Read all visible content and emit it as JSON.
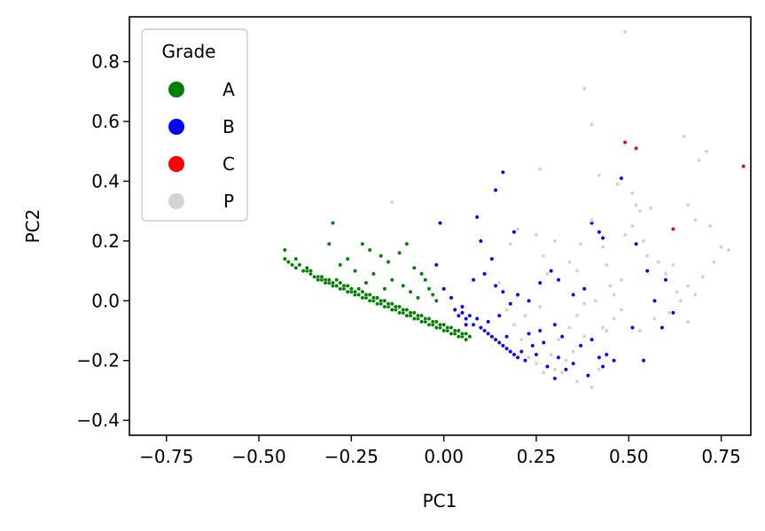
{
  "chart_data": {
    "type": "scatter",
    "title": "",
    "xlabel": "PC1",
    "ylabel": "PC2",
    "xlim": [
      -0.85,
      0.83
    ],
    "ylim": [
      -0.45,
      0.95
    ],
    "xticks": [
      -0.75,
      -0.5,
      -0.25,
      0.0,
      0.25,
      0.5,
      0.75
    ],
    "xtick_labels": [
      "−0.75",
      "−0.50",
      "−0.25",
      "0.00",
      "0.25",
      "0.50",
      "0.75"
    ],
    "yticks": [
      -0.4,
      -0.2,
      0.0,
      0.2,
      0.4,
      0.6,
      0.8
    ],
    "ytick_labels": [
      "−0.4",
      "−0.2",
      "0.0",
      "0.2",
      "0.4",
      "0.6",
      "0.8"
    ],
    "grid": false,
    "legend": {
      "title": "Grade",
      "placement": "top-left"
    },
    "series": [
      {
        "name": "A",
        "color": "#008000",
        "points": [
          [
            -0.43,
            0.14
          ],
          [
            -0.43,
            0.17
          ],
          [
            -0.42,
            0.13
          ],
          [
            -0.41,
            0.12
          ],
          [
            -0.4,
            0.14
          ],
          [
            -0.4,
            0.11
          ],
          [
            -0.39,
            0.12
          ],
          [
            -0.38,
            0.1
          ],
          [
            -0.37,
            0.1
          ],
          [
            -0.37,
            0.11
          ],
          [
            -0.36,
            0.09
          ],
          [
            -0.36,
            0.1
          ],
          [
            -0.35,
            0.08
          ],
          [
            -0.34,
            0.08
          ],
          [
            -0.34,
            0.07
          ],
          [
            -0.33,
            0.07
          ],
          [
            -0.33,
            0.08
          ],
          [
            -0.32,
            0.07
          ],
          [
            -0.32,
            0.06
          ],
          [
            -0.31,
            0.06
          ],
          [
            -0.31,
            0.07
          ],
          [
            -0.3,
            0.05
          ],
          [
            -0.3,
            0.06
          ],
          [
            -0.29,
            0.05
          ],
          [
            -0.29,
            0.07
          ],
          [
            -0.28,
            0.04
          ],
          [
            -0.28,
            0.06
          ],
          [
            -0.27,
            0.04
          ],
          [
            -0.27,
            0.05
          ],
          [
            -0.26,
            0.03
          ],
          [
            -0.26,
            0.05
          ],
          [
            -0.25,
            0.03
          ],
          [
            -0.25,
            0.04
          ],
          [
            -0.24,
            0.02
          ],
          [
            -0.24,
            0.03
          ],
          [
            -0.23,
            0.02
          ],
          [
            -0.23,
            0.04
          ],
          [
            -0.22,
            0.01
          ],
          [
            -0.22,
            0.03
          ],
          [
            -0.21,
            0.01
          ],
          [
            -0.21,
            0.02
          ],
          [
            -0.2,
            0.0
          ],
          [
            -0.2,
            0.02
          ],
          [
            -0.19,
            0.0
          ],
          [
            -0.19,
            0.01
          ],
          [
            -0.18,
            -0.01
          ],
          [
            -0.18,
            0.01
          ],
          [
            -0.17,
            -0.01
          ],
          [
            -0.17,
            0.0
          ],
          [
            -0.16,
            -0.02
          ],
          [
            -0.16,
            0.0
          ],
          [
            -0.15,
            -0.02
          ],
          [
            -0.15,
            -0.01
          ],
          [
            -0.14,
            -0.03
          ],
          [
            -0.14,
            -0.01
          ],
          [
            -0.13,
            -0.03
          ],
          [
            -0.13,
            -0.02
          ],
          [
            -0.12,
            -0.04
          ],
          [
            -0.12,
            -0.02
          ],
          [
            -0.11,
            -0.04
          ],
          [
            -0.11,
            -0.03
          ],
          [
            -0.1,
            -0.05
          ],
          [
            -0.1,
            -0.03
          ],
          [
            -0.09,
            -0.05
          ],
          [
            -0.09,
            -0.04
          ],
          [
            -0.08,
            -0.06
          ],
          [
            -0.08,
            -0.04
          ],
          [
            -0.07,
            -0.06
          ],
          [
            -0.07,
            -0.05
          ],
          [
            -0.06,
            -0.07
          ],
          [
            -0.06,
            -0.05
          ],
          [
            -0.05,
            -0.07
          ],
          [
            -0.05,
            -0.06
          ],
          [
            -0.04,
            -0.08
          ],
          [
            -0.04,
            -0.06
          ],
          [
            -0.03,
            -0.08
          ],
          [
            -0.03,
            -0.07
          ],
          [
            -0.02,
            -0.09
          ],
          [
            -0.02,
            -0.07
          ],
          [
            -0.01,
            -0.09
          ],
          [
            -0.01,
            -0.08
          ],
          [
            0.0,
            -0.1
          ],
          [
            0.0,
            -0.08
          ],
          [
            0.01,
            -0.1
          ],
          [
            0.01,
            -0.09
          ],
          [
            0.02,
            -0.11
          ],
          [
            0.02,
            -0.09
          ],
          [
            0.03,
            -0.11
          ],
          [
            0.03,
            -0.1
          ],
          [
            0.04,
            -0.12
          ],
          [
            0.04,
            -0.1
          ],
          [
            0.05,
            -0.12
          ],
          [
            0.05,
            -0.11
          ],
          [
            0.06,
            -0.13
          ],
          [
            0.06,
            -0.11
          ],
          [
            0.07,
            -0.12
          ],
          [
            -0.3,
            0.26
          ],
          [
            -0.31,
            0.19
          ],
          [
            -0.26,
            0.14
          ],
          [
            -0.22,
            0.19
          ],
          [
            -0.2,
            0.17
          ],
          [
            -0.17,
            0.15
          ],
          [
            -0.15,
            0.13
          ],
          [
            -0.12,
            0.16
          ],
          [
            -0.1,
            0.19
          ],
          [
            -0.08,
            0.11
          ],
          [
            -0.06,
            0.09
          ],
          [
            -0.05,
            0.07
          ],
          [
            -0.04,
            0.04
          ],
          [
            -0.03,
            0.02
          ],
          [
            -0.02,
            0.0
          ],
          [
            -0.24,
            0.1
          ],
          [
            -0.28,
            0.12
          ],
          [
            -0.19,
            0.09
          ],
          [
            -0.14,
            0.07
          ],
          [
            -0.11,
            0.05
          ],
          [
            -0.09,
            0.03
          ],
          [
            -0.07,
            0.01
          ],
          [
            -0.16,
            0.04
          ],
          [
            -0.21,
            0.06
          ]
        ]
      },
      {
        "name": "B",
        "color": "#0000ff",
        "points": [
          [
            0.03,
            -0.03
          ],
          [
            0.04,
            -0.05
          ],
          [
            0.05,
            -0.04
          ],
          [
            0.06,
            -0.06
          ],
          [
            0.07,
            -0.05
          ],
          [
            0.08,
            -0.08
          ],
          [
            0.09,
            -0.06
          ],
          [
            0.1,
            -0.09
          ],
          [
            0.11,
            -0.1
          ],
          [
            0.12,
            -0.11
          ],
          [
            0.13,
            -0.12
          ],
          [
            0.14,
            -0.13
          ],
          [
            0.15,
            -0.14
          ],
          [
            0.16,
            -0.15
          ],
          [
            0.17,
            -0.16
          ],
          [
            0.18,
            -0.17
          ],
          [
            0.19,
            -0.18
          ],
          [
            0.2,
            -0.19
          ],
          [
            0.21,
            -0.17
          ],
          [
            0.22,
            -0.2
          ],
          [
            0.24,
            -0.15
          ],
          [
            0.25,
            -0.18
          ],
          [
            0.27,
            -0.14
          ],
          [
            0.28,
            -0.22
          ],
          [
            0.3,
            -0.26
          ],
          [
            0.31,
            -0.19
          ],
          [
            0.33,
            -0.23
          ],
          [
            0.35,
            -0.21
          ],
          [
            0.37,
            -0.15
          ],
          [
            0.39,
            -0.25
          ],
          [
            0.4,
            -0.13
          ],
          [
            0.42,
            -0.19
          ],
          [
            0.43,
            -0.22
          ],
          [
            0.44,
            -0.18
          ],
          [
            0.46,
            -0.2
          ],
          [
            0.08,
            0.07
          ],
          [
            0.11,
            0.09
          ],
          [
            0.14,
            0.05
          ],
          [
            0.16,
            0.03
          ],
          [
            0.18,
            -0.01
          ],
          [
            0.2,
            0.02
          ],
          [
            0.23,
            0.0
          ],
          [
            0.26,
            0.06
          ],
          [
            0.29,
            0.1
          ],
          [
            0.31,
            0.07
          ],
          [
            0.35,
            0.02
          ],
          [
            0.38,
            0.04
          ],
          [
            -0.01,
            0.26
          ],
          [
            0.09,
            0.28
          ],
          [
            0.1,
            0.2
          ],
          [
            0.13,
            0.14
          ],
          [
            0.14,
            0.37
          ],
          [
            0.16,
            0.43
          ],
          [
            0.19,
            0.23
          ],
          [
            0.4,
            0.26
          ],
          [
            0.42,
            0.23
          ],
          [
            0.43,
            0.21
          ],
          [
            0.48,
            0.41
          ],
          [
            0.52,
            0.19
          ],
          [
            0.55,
            0.1
          ],
          [
            0.57,
            0.0
          ],
          [
            0.6,
            0.07
          ],
          [
            0.62,
            -0.04
          ],
          [
            0.59,
            -0.09
          ],
          [
            0.51,
            -0.09
          ],
          [
            0.54,
            -0.2
          ],
          [
            -0.02,
            0.12
          ],
          [
            0.0,
            0.04
          ],
          [
            0.02,
            0.01
          ],
          [
            0.05,
            -0.02
          ],
          [
            0.06,
            -0.08
          ],
          [
            0.12,
            -0.07
          ],
          [
            0.15,
            -0.05
          ],
          [
            0.17,
            -0.12
          ],
          [
            0.23,
            -0.11
          ],
          [
            0.26,
            -0.1
          ],
          [
            0.3,
            -0.08
          ],
          [
            0.32,
            -0.12
          ]
        ]
      },
      {
        "name": "C",
        "color": "#ff0000",
        "points": [
          [
            0.49,
            0.53
          ],
          [
            0.52,
            0.51
          ],
          [
            0.62,
            0.24
          ],
          [
            0.81,
            0.45
          ]
        ]
      },
      {
        "name": "P",
        "color": "#d3d3d3",
        "points": [
          [
            0.49,
            0.9
          ],
          [
            0.38,
            0.71
          ],
          [
            0.4,
            0.59
          ],
          [
            0.65,
            0.55
          ],
          [
            0.71,
            0.5
          ],
          [
            0.69,
            0.47
          ],
          [
            0.42,
            0.42
          ],
          [
            0.26,
            0.44
          ],
          [
            0.47,
            0.39
          ],
          [
            0.51,
            0.36
          ],
          [
            0.52,
            0.32
          ],
          [
            0.53,
            0.3
          ],
          [
            0.56,
            0.31
          ],
          [
            0.66,
            0.32
          ],
          [
            0.68,
            0.27
          ],
          [
            0.72,
            0.25
          ],
          [
            0.75,
            0.18
          ],
          [
            0.77,
            0.17
          ],
          [
            0.73,
            0.13
          ],
          [
            0.7,
            0.08
          ],
          [
            0.66,
            0.05
          ],
          [
            0.64,
            0.0
          ],
          [
            0.61,
            -0.04
          ],
          [
            0.57,
            -0.06
          ],
          [
            0.53,
            -0.1
          ],
          [
            0.48,
            -0.03
          ],
          [
            0.46,
            -0.06
          ],
          [
            0.43,
            -0.09
          ],
          [
            0.38,
            -0.12
          ],
          [
            0.35,
            -0.17
          ],
          [
            0.33,
            -0.2
          ],
          [
            0.3,
            -0.23
          ],
          [
            0.27,
            -0.24
          ],
          [
            0.25,
            -0.21
          ],
          [
            0.23,
            -0.19
          ],
          [
            0.21,
            -0.13
          ],
          [
            0.19,
            -0.08
          ],
          [
            0.17,
            -0.03
          ],
          [
            0.15,
            0.06
          ],
          [
            0.18,
            0.19
          ],
          [
            0.2,
            0.24
          ],
          [
            0.25,
            0.22
          ],
          [
            0.27,
            0.15
          ],
          [
            0.28,
            0.09
          ],
          [
            0.34,
            0.13
          ],
          [
            0.37,
            0.19
          ],
          [
            0.4,
            0.27
          ],
          [
            0.43,
            0.18
          ],
          [
            0.44,
            0.12
          ],
          [
            0.45,
            0.05
          ],
          [
            0.46,
            0.02
          ],
          [
            0.49,
            0.22
          ],
          [
            0.51,
            0.25
          ],
          [
            0.54,
            0.2
          ],
          [
            0.58,
            0.13
          ],
          [
            0.6,
            0.09
          ],
          [
            0.63,
            0.03
          ],
          [
            0.66,
            -0.07
          ],
          [
            0.42,
            -0.23
          ],
          [
            0.4,
            -0.29
          ],
          [
            0.36,
            -0.27
          ],
          [
            0.32,
            -0.24
          ],
          [
            0.29,
            -0.18
          ],
          [
            0.31,
            -0.13
          ],
          [
            0.34,
            -0.09
          ],
          [
            0.36,
            -0.05
          ],
          [
            0.38,
            -0.01
          ],
          [
            0.41,
            0.0
          ],
          [
            -0.14,
            0.33
          ],
          [
            0.3,
            0.2
          ],
          [
            0.36,
            0.1
          ],
          [
            0.44,
            -0.1
          ],
          [
            0.48,
            0.07
          ],
          [
            0.55,
            0.15
          ],
          [
            0.62,
            0.12
          ],
          [
            0.68,
            0.02
          ],
          [
            0.22,
            -0.05
          ],
          [
            0.26,
            -0.02
          ]
        ]
      }
    ]
  }
}
